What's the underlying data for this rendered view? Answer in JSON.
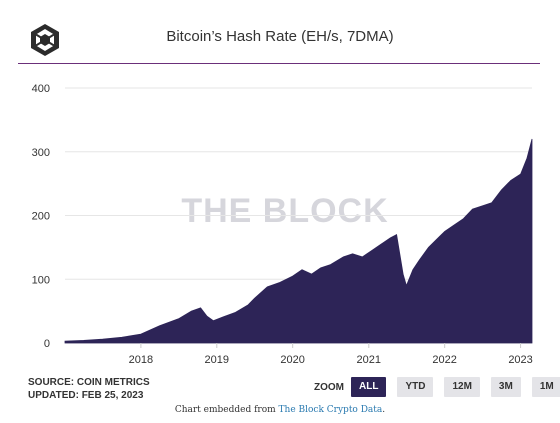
{
  "title": "Bitcoin’s Hash Rate (EH/s, 7DMA)",
  "watermark": "THE BLOCK",
  "colors": {
    "series": "#2d2457",
    "rule": "#6b2f7a",
    "accent": "#2d2457",
    "link": "#2a7ab0"
  },
  "logo_icon": "the-block-cube-logo",
  "source": {
    "line1": "SOURCE: COIN METRICS",
    "line2": "UPDATED: FEB 25, 2023"
  },
  "zoom": {
    "label": "ZOOM",
    "buttons": [
      "ALL",
      "YTD",
      "12M",
      "3M",
      "1M"
    ],
    "active": "ALL"
  },
  "footer": {
    "text": "Chart embedded from ",
    "link": "The Block Crypto Data",
    "suffix": "."
  },
  "chart_data": {
    "type": "area",
    "title": "Bitcoin’s Hash Rate (EH/s, 7DMA)",
    "xlabel": "",
    "ylabel": "",
    "ylim": [
      0,
      400
    ],
    "yticks": [
      0,
      100,
      200,
      300,
      400
    ],
    "xlim": [
      "2017-01-01",
      "2023-02-25"
    ],
    "xticks": [
      "2018",
      "2019",
      "2020",
      "2021",
      "2022",
      "2023"
    ],
    "grid": true,
    "legend": "none",
    "series": [
      {
        "x": [
          "2017-01-01",
          "2017-04-01",
          "2017-07-01",
          "2017-10-01",
          "2018-01-01",
          "2018-04-01",
          "2018-07-01",
          "2018-09-01",
          "2018-10-15",
          "2018-11-15",
          "2018-12-15",
          "2019-02-01",
          "2019-04-01",
          "2019-06-01",
          "2019-07-01",
          "2019-09-01",
          "2019-11-01",
          "2020-01-01",
          "2020-02-15",
          "2020-04-01",
          "2020-05-15",
          "2020-07-01",
          "2020-09-01",
          "2020-10-15",
          "2020-12-01",
          "2021-01-15",
          "2021-03-01",
          "2021-04-15",
          "2021-05-15",
          "2021-06-15",
          "2021-07-01",
          "2021-08-01",
          "2021-09-01",
          "2021-10-15",
          "2021-12-01",
          "2022-01-01",
          "2022-02-15",
          "2022-04-01",
          "2022-05-15",
          "2022-07-01",
          "2022-08-15",
          "2022-10-01",
          "2022-11-15",
          "2023-01-01",
          "2023-02-01",
          "2023-02-25"
        ],
        "values": [
          3,
          4,
          6,
          9,
          14,
          27,
          38,
          50,
          55,
          42,
          35,
          41,
          48,
          60,
          70,
          88,
          95,
          105,
          115,
          108,
          118,
          123,
          135,
          140,
          135,
          145,
          155,
          165,
          170,
          108,
          90,
          115,
          130,
          150,
          165,
          175,
          185,
          195,
          210,
          215,
          220,
          240,
          255,
          265,
          290,
          320
        ]
      }
    ]
  }
}
